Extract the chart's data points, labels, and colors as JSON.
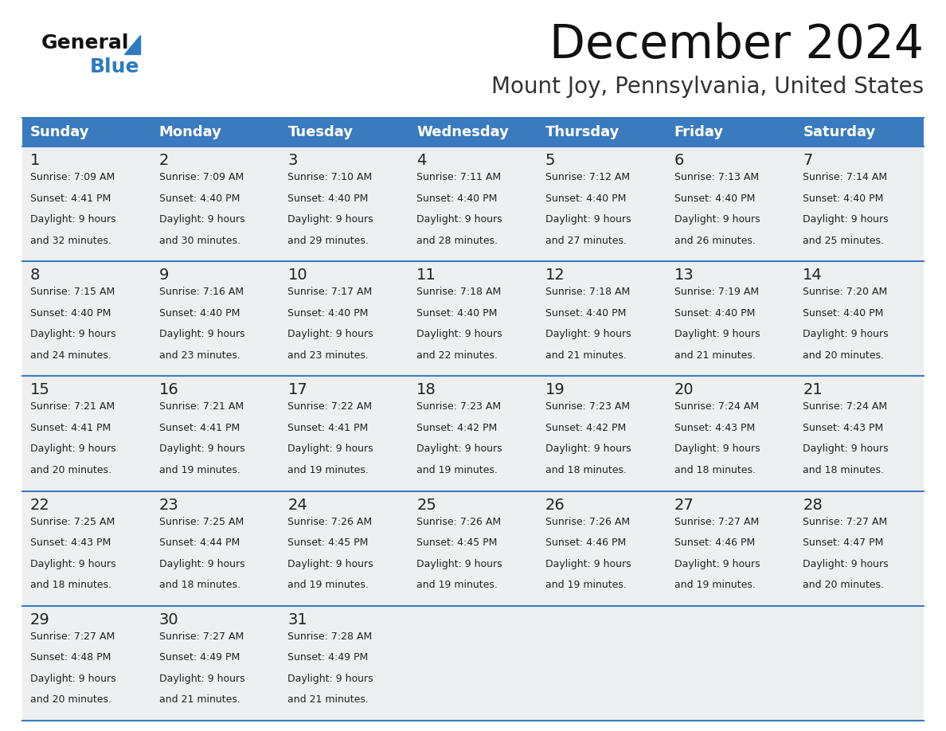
{
  "title": "December 2024",
  "subtitle": "Mount Joy, Pennsylvania, United States",
  "header_color": "#3a7bbf",
  "header_text_color": "#ffffff",
  "day_names": [
    "Sunday",
    "Monday",
    "Tuesday",
    "Wednesday",
    "Thursday",
    "Friday",
    "Saturday"
  ],
  "bg_color": "#ffffff",
  "cell_bg": "#eeeff1",
  "border_color": "#3a7bbf",
  "text_color": "#222222",
  "logo_general_color": "#111111",
  "logo_blue_color": "#2e7bbf",
  "weeks": [
    [
      {
        "day": 1,
        "sunrise": "7:09 AM",
        "sunset": "4:41 PM",
        "daylight": "9 hours and 32 minutes"
      },
      {
        "day": 2,
        "sunrise": "7:09 AM",
        "sunset": "4:40 PM",
        "daylight": "9 hours and 30 minutes"
      },
      {
        "day": 3,
        "sunrise": "7:10 AM",
        "sunset": "4:40 PM",
        "daylight": "9 hours and 29 minutes"
      },
      {
        "day": 4,
        "sunrise": "7:11 AM",
        "sunset": "4:40 PM",
        "daylight": "9 hours and 28 minutes"
      },
      {
        "day": 5,
        "sunrise": "7:12 AM",
        "sunset": "4:40 PM",
        "daylight": "9 hours and 27 minutes"
      },
      {
        "day": 6,
        "sunrise": "7:13 AM",
        "sunset": "4:40 PM",
        "daylight": "9 hours and 26 minutes"
      },
      {
        "day": 7,
        "sunrise": "7:14 AM",
        "sunset": "4:40 PM",
        "daylight": "9 hours and 25 minutes"
      }
    ],
    [
      {
        "day": 8,
        "sunrise": "7:15 AM",
        "sunset": "4:40 PM",
        "daylight": "9 hours and 24 minutes"
      },
      {
        "day": 9,
        "sunrise": "7:16 AM",
        "sunset": "4:40 PM",
        "daylight": "9 hours and 23 minutes"
      },
      {
        "day": 10,
        "sunrise": "7:17 AM",
        "sunset": "4:40 PM",
        "daylight": "9 hours and 23 minutes"
      },
      {
        "day": 11,
        "sunrise": "7:18 AM",
        "sunset": "4:40 PM",
        "daylight": "9 hours and 22 minutes"
      },
      {
        "day": 12,
        "sunrise": "7:18 AM",
        "sunset": "4:40 PM",
        "daylight": "9 hours and 21 minutes"
      },
      {
        "day": 13,
        "sunrise": "7:19 AM",
        "sunset": "4:40 PM",
        "daylight": "9 hours and 21 minutes"
      },
      {
        "day": 14,
        "sunrise": "7:20 AM",
        "sunset": "4:40 PM",
        "daylight": "9 hours and 20 minutes"
      }
    ],
    [
      {
        "day": 15,
        "sunrise": "7:21 AM",
        "sunset": "4:41 PM",
        "daylight": "9 hours and 20 minutes"
      },
      {
        "day": 16,
        "sunrise": "7:21 AM",
        "sunset": "4:41 PM",
        "daylight": "9 hours and 19 minutes"
      },
      {
        "day": 17,
        "sunrise": "7:22 AM",
        "sunset": "4:41 PM",
        "daylight": "9 hours and 19 minutes"
      },
      {
        "day": 18,
        "sunrise": "7:23 AM",
        "sunset": "4:42 PM",
        "daylight": "9 hours and 19 minutes"
      },
      {
        "day": 19,
        "sunrise": "7:23 AM",
        "sunset": "4:42 PM",
        "daylight": "9 hours and 18 minutes"
      },
      {
        "day": 20,
        "sunrise": "7:24 AM",
        "sunset": "4:43 PM",
        "daylight": "9 hours and 18 minutes"
      },
      {
        "day": 21,
        "sunrise": "7:24 AM",
        "sunset": "4:43 PM",
        "daylight": "9 hours and 18 minutes"
      }
    ],
    [
      {
        "day": 22,
        "sunrise": "7:25 AM",
        "sunset": "4:43 PM",
        "daylight": "9 hours and 18 minutes"
      },
      {
        "day": 23,
        "sunrise": "7:25 AM",
        "sunset": "4:44 PM",
        "daylight": "9 hours and 18 minutes"
      },
      {
        "day": 24,
        "sunrise": "7:26 AM",
        "sunset": "4:45 PM",
        "daylight": "9 hours and 19 minutes"
      },
      {
        "day": 25,
        "sunrise": "7:26 AM",
        "sunset": "4:45 PM",
        "daylight": "9 hours and 19 minutes"
      },
      {
        "day": 26,
        "sunrise": "7:26 AM",
        "sunset": "4:46 PM",
        "daylight": "9 hours and 19 minutes"
      },
      {
        "day": 27,
        "sunrise": "7:27 AM",
        "sunset": "4:46 PM",
        "daylight": "9 hours and 19 minutes"
      },
      {
        "day": 28,
        "sunrise": "7:27 AM",
        "sunset": "4:47 PM",
        "daylight": "9 hours and 20 minutes"
      }
    ],
    [
      {
        "day": 29,
        "sunrise": "7:27 AM",
        "sunset": "4:48 PM",
        "daylight": "9 hours and 20 minutes"
      },
      {
        "day": 30,
        "sunrise": "7:27 AM",
        "sunset": "4:49 PM",
        "daylight": "9 hours and 21 minutes"
      },
      {
        "day": 31,
        "sunrise": "7:28 AM",
        "sunset": "4:49 PM",
        "daylight": "9 hours and 21 minutes"
      },
      null,
      null,
      null,
      null
    ]
  ]
}
